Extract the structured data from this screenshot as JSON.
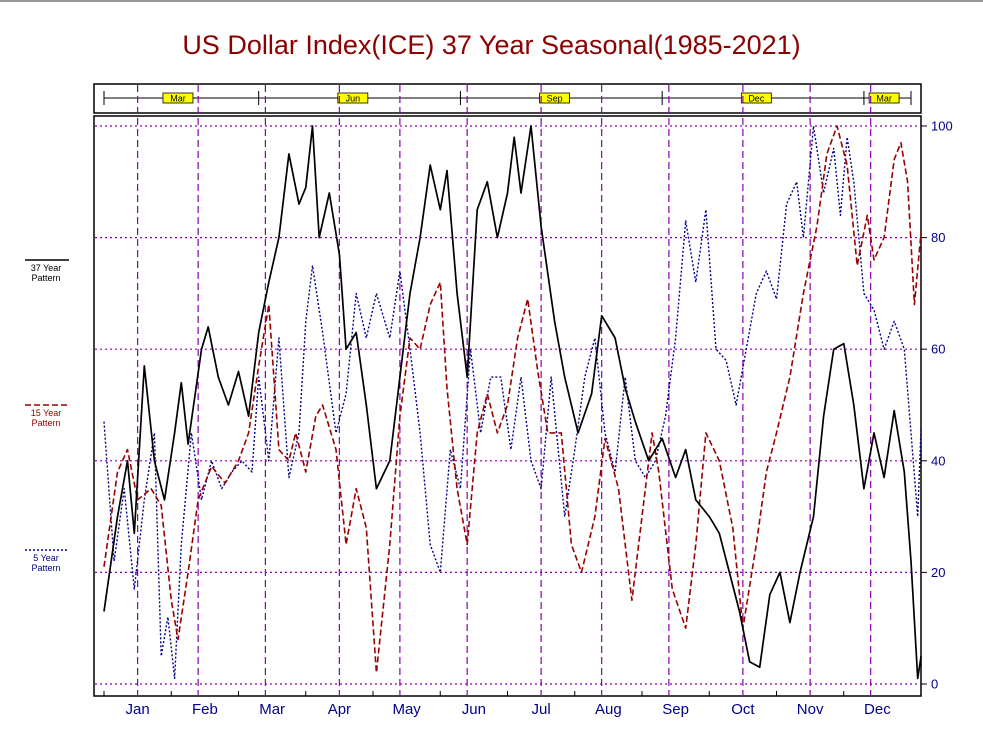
{
  "chart_data": {
    "type": "line",
    "title": "US Dollar Index(ICE) 37 Year Seasonal(1985-2021)",
    "colors": {
      "title": "#8b0000",
      "axis_text": "#00008b",
      "grid": "#8b00b0",
      "marker_fill": "#ffff00",
      "s37": "#000000",
      "s15": "#990000",
      "s5": "#00008b"
    },
    "months": [
      "Jan",
      "Feb",
      "Mar",
      "Apr",
      "May",
      "Jun",
      "Jul",
      "Aug",
      "Sep",
      "Oct",
      "Nov",
      "Dec"
    ],
    "x_range": [
      0,
      12
    ],
    "ylim": [
      0,
      100
    ],
    "yticks": [
      0,
      20,
      40,
      60,
      80,
      100
    ],
    "grid": true,
    "v_grid_at": [
      0.5,
      1.4,
      2.4,
      3.5,
      4.4,
      5.4,
      6.5,
      7.4,
      8.4,
      9.5,
      10.5,
      11.4
    ],
    "top_strip": {
      "markers": [
        {
          "label": "Mar",
          "x": 1.1
        },
        {
          "label": "Jun",
          "x": 3.7
        },
        {
          "label": "Sep",
          "x": 6.7
        },
        {
          "label": "Dec",
          "x": 9.7
        },
        {
          "label": "Mar",
          "x": 11.6
        }
      ],
      "ticks": [
        0.0,
        2.3,
        5.3,
        8.3,
        11.3,
        12.0
      ]
    },
    "legend": [
      {
        "label": "37 Year Pattern",
        "style": "solid"
      },
      {
        "label": "15 Year Pattern",
        "style": "dashed"
      },
      {
        "label": "5 Year Pattern",
        "style": "dotted"
      }
    ],
    "series": [
      {
        "name": "37 Year Pattern",
        "style": "solid",
        "color": "#000000",
        "points": [
          [
            0.0,
            13
          ],
          [
            0.2,
            30
          ],
          [
            0.35,
            40
          ],
          [
            0.45,
            27
          ],
          [
            0.6,
            57
          ],
          [
            0.75,
            40
          ],
          [
            0.9,
            33
          ],
          [
            1.05,
            45
          ],
          [
            1.15,
            54
          ],
          [
            1.25,
            43
          ],
          [
            1.45,
            60
          ],
          [
            1.55,
            64
          ],
          [
            1.7,
            55
          ],
          [
            1.85,
            50
          ],
          [
            2.0,
            56
          ],
          [
            2.15,
            48
          ],
          [
            2.3,
            63
          ],
          [
            2.45,
            72
          ],
          [
            2.6,
            80
          ],
          [
            2.75,
            95
          ],
          [
            2.9,
            86
          ],
          [
            3.0,
            89
          ],
          [
            3.1,
            100
          ],
          [
            3.2,
            80
          ],
          [
            3.35,
            88
          ],
          [
            3.5,
            77
          ],
          [
            3.6,
            60
          ],
          [
            3.75,
            63
          ],
          [
            3.9,
            50
          ],
          [
            4.05,
            35
          ],
          [
            4.25,
            40
          ],
          [
            4.4,
            55
          ],
          [
            4.55,
            70
          ],
          [
            4.7,
            80
          ],
          [
            4.85,
            93
          ],
          [
            5.0,
            85
          ],
          [
            5.1,
            92
          ],
          [
            5.25,
            70
          ],
          [
            5.4,
            55
          ],
          [
            5.55,
            85
          ],
          [
            5.7,
            90
          ],
          [
            5.85,
            80
          ],
          [
            6.0,
            88
          ],
          [
            6.1,
            98
          ],
          [
            6.2,
            88
          ],
          [
            6.35,
            100
          ],
          [
            6.5,
            82
          ],
          [
            6.7,
            65
          ],
          [
            6.85,
            55
          ],
          [
            7.05,
            45
          ],
          [
            7.25,
            52
          ],
          [
            7.4,
            66
          ],
          [
            7.6,
            62
          ],
          [
            7.75,
            53
          ],
          [
            7.9,
            47
          ],
          [
            8.1,
            40
          ],
          [
            8.3,
            44
          ],
          [
            8.5,
            37
          ],
          [
            8.65,
            42
          ],
          [
            8.8,
            33
          ],
          [
            9.0,
            30
          ],
          [
            9.15,
            27
          ],
          [
            9.3,
            20
          ],
          [
            9.45,
            13
          ],
          [
            9.6,
            4
          ],
          [
            9.75,
            3
          ],
          [
            9.9,
            16
          ],
          [
            10.05,
            20
          ],
          [
            10.2,
            11
          ],
          [
            10.35,
            20
          ],
          [
            10.55,
            30
          ],
          [
            10.7,
            48
          ],
          [
            10.85,
            60
          ],
          [
            11.0,
            61
          ],
          [
            11.15,
            50
          ],
          [
            11.3,
            35
          ],
          [
            11.45,
            45
          ],
          [
            11.6,
            37
          ],
          [
            11.75,
            49
          ],
          [
            11.9,
            38
          ],
          [
            12.0,
            22
          ],
          [
            12.1,
            1
          ],
          [
            12.15,
            5
          ]
        ]
      },
      {
        "name": "15 Year Pattern",
        "style": "dashed",
        "color": "#990000",
        "points": [
          [
            0.0,
            21
          ],
          [
            0.2,
            38
          ],
          [
            0.35,
            42
          ],
          [
            0.5,
            33
          ],
          [
            0.7,
            35
          ],
          [
            0.85,
            32
          ],
          [
            1.0,
            15
          ],
          [
            1.1,
            8
          ],
          [
            1.25,
            20
          ],
          [
            1.4,
            33
          ],
          [
            1.6,
            39
          ],
          [
            1.8,
            36
          ],
          [
            2.0,
            40
          ],
          [
            2.15,
            45
          ],
          [
            2.3,
            57
          ],
          [
            2.45,
            68
          ],
          [
            2.6,
            42
          ],
          [
            2.75,
            40
          ],
          [
            2.85,
            45
          ],
          [
            3.0,
            38
          ],
          [
            3.15,
            48
          ],
          [
            3.25,
            50
          ],
          [
            3.45,
            42
          ],
          [
            3.6,
            25
          ],
          [
            3.75,
            35
          ],
          [
            3.9,
            28
          ],
          [
            4.05,
            2
          ],
          [
            4.25,
            25
          ],
          [
            4.4,
            48
          ],
          [
            4.55,
            62
          ],
          [
            4.7,
            60
          ],
          [
            4.85,
            68
          ],
          [
            5.0,
            72
          ],
          [
            5.1,
            53
          ],
          [
            5.25,
            35
          ],
          [
            5.4,
            25
          ],
          [
            5.55,
            45
          ],
          [
            5.7,
            52
          ],
          [
            5.85,
            45
          ],
          [
            6.0,
            50
          ],
          [
            6.15,
            62
          ],
          [
            6.3,
            69
          ],
          [
            6.45,
            56
          ],
          [
            6.6,
            45
          ],
          [
            6.8,
            45
          ],
          [
            6.95,
            25
          ],
          [
            7.1,
            20
          ],
          [
            7.3,
            30
          ],
          [
            7.45,
            44
          ],
          [
            7.65,
            35
          ],
          [
            7.85,
            15
          ],
          [
            8.0,
            30
          ],
          [
            8.15,
            45
          ],
          [
            8.25,
            38
          ],
          [
            8.45,
            17
          ],
          [
            8.65,
            10
          ],
          [
            8.8,
            25
          ],
          [
            8.95,
            45
          ],
          [
            9.15,
            40
          ],
          [
            9.35,
            28
          ],
          [
            9.5,
            10
          ],
          [
            9.7,
            25
          ],
          [
            9.85,
            38
          ],
          [
            10.0,
            45
          ],
          [
            10.2,
            55
          ],
          [
            10.4,
            70
          ],
          [
            10.6,
            82
          ],
          [
            10.75,
            95
          ],
          [
            10.9,
            100
          ],
          [
            11.05,
            93
          ],
          [
            11.2,
            75
          ],
          [
            11.35,
            84
          ],
          [
            11.45,
            76
          ],
          [
            11.6,
            80
          ],
          [
            11.75,
            94
          ],
          [
            11.85,
            97
          ],
          [
            11.95,
            90
          ],
          [
            12.05,
            68
          ],
          [
            12.15,
            81
          ]
        ]
      },
      {
        "name": "5 Year Pattern",
        "style": "dotted",
        "color": "#00008b",
        "points": [
          [
            0.0,
            47
          ],
          [
            0.15,
            22
          ],
          [
            0.3,
            35
          ],
          [
            0.45,
            17
          ],
          [
            0.6,
            33
          ],
          [
            0.75,
            45
          ],
          [
            0.85,
            5
          ],
          [
            0.95,
            12
          ],
          [
            1.05,
            1
          ],
          [
            1.15,
            25
          ],
          [
            1.3,
            45
          ],
          [
            1.45,
            33
          ],
          [
            1.6,
            40
          ],
          [
            1.75,
            35
          ],
          [
            1.9,
            38
          ],
          [
            2.05,
            40
          ],
          [
            2.2,
            38
          ],
          [
            2.3,
            55
          ],
          [
            2.45,
            40
          ],
          [
            2.6,
            62
          ],
          [
            2.75,
            37
          ],
          [
            2.9,
            45
          ],
          [
            3.0,
            65
          ],
          [
            3.1,
            75
          ],
          [
            3.25,
            63
          ],
          [
            3.45,
            45
          ],
          [
            3.6,
            52
          ],
          [
            3.75,
            70
          ],
          [
            3.9,
            62
          ],
          [
            4.05,
            70
          ],
          [
            4.25,
            62
          ],
          [
            4.4,
            74
          ],
          [
            4.55,
            60
          ],
          [
            4.7,
            45
          ],
          [
            4.85,
            25
          ],
          [
            5.0,
            20
          ],
          [
            5.15,
            42
          ],
          [
            5.3,
            35
          ],
          [
            5.45,
            60
          ],
          [
            5.6,
            45
          ],
          [
            5.75,
            55
          ],
          [
            5.9,
            55
          ],
          [
            6.05,
            42
          ],
          [
            6.2,
            55
          ],
          [
            6.35,
            40
          ],
          [
            6.5,
            35
          ],
          [
            6.65,
            55
          ],
          [
            6.85,
            30
          ],
          [
            7.0,
            42
          ],
          [
            7.15,
            55
          ],
          [
            7.3,
            62
          ],
          [
            7.45,
            45
          ],
          [
            7.6,
            38
          ],
          [
            7.75,
            55
          ],
          [
            7.9,
            40
          ],
          [
            8.05,
            37
          ],
          [
            8.2,
            40
          ],
          [
            8.35,
            48
          ],
          [
            8.5,
            62
          ],
          [
            8.65,
            83
          ],
          [
            8.8,
            72
          ],
          [
            8.95,
            85
          ],
          [
            9.1,
            60
          ],
          [
            9.25,
            58
          ],
          [
            9.4,
            50
          ],
          [
            9.55,
            60
          ],
          [
            9.7,
            70
          ],
          [
            9.85,
            74
          ],
          [
            10.0,
            69
          ],
          [
            10.15,
            86
          ],
          [
            10.3,
            90
          ],
          [
            10.4,
            80
          ],
          [
            10.55,
            100
          ],
          [
            10.7,
            88
          ],
          [
            10.85,
            96
          ],
          [
            10.95,
            84
          ],
          [
            11.05,
            98
          ],
          [
            11.15,
            90
          ],
          [
            11.3,
            70
          ],
          [
            11.45,
            67
          ],
          [
            11.6,
            60
          ],
          [
            11.75,
            65
          ],
          [
            11.9,
            60
          ],
          [
            12.0,
            45
          ],
          [
            12.1,
            30
          ],
          [
            12.15,
            46
          ]
        ]
      }
    ]
  }
}
